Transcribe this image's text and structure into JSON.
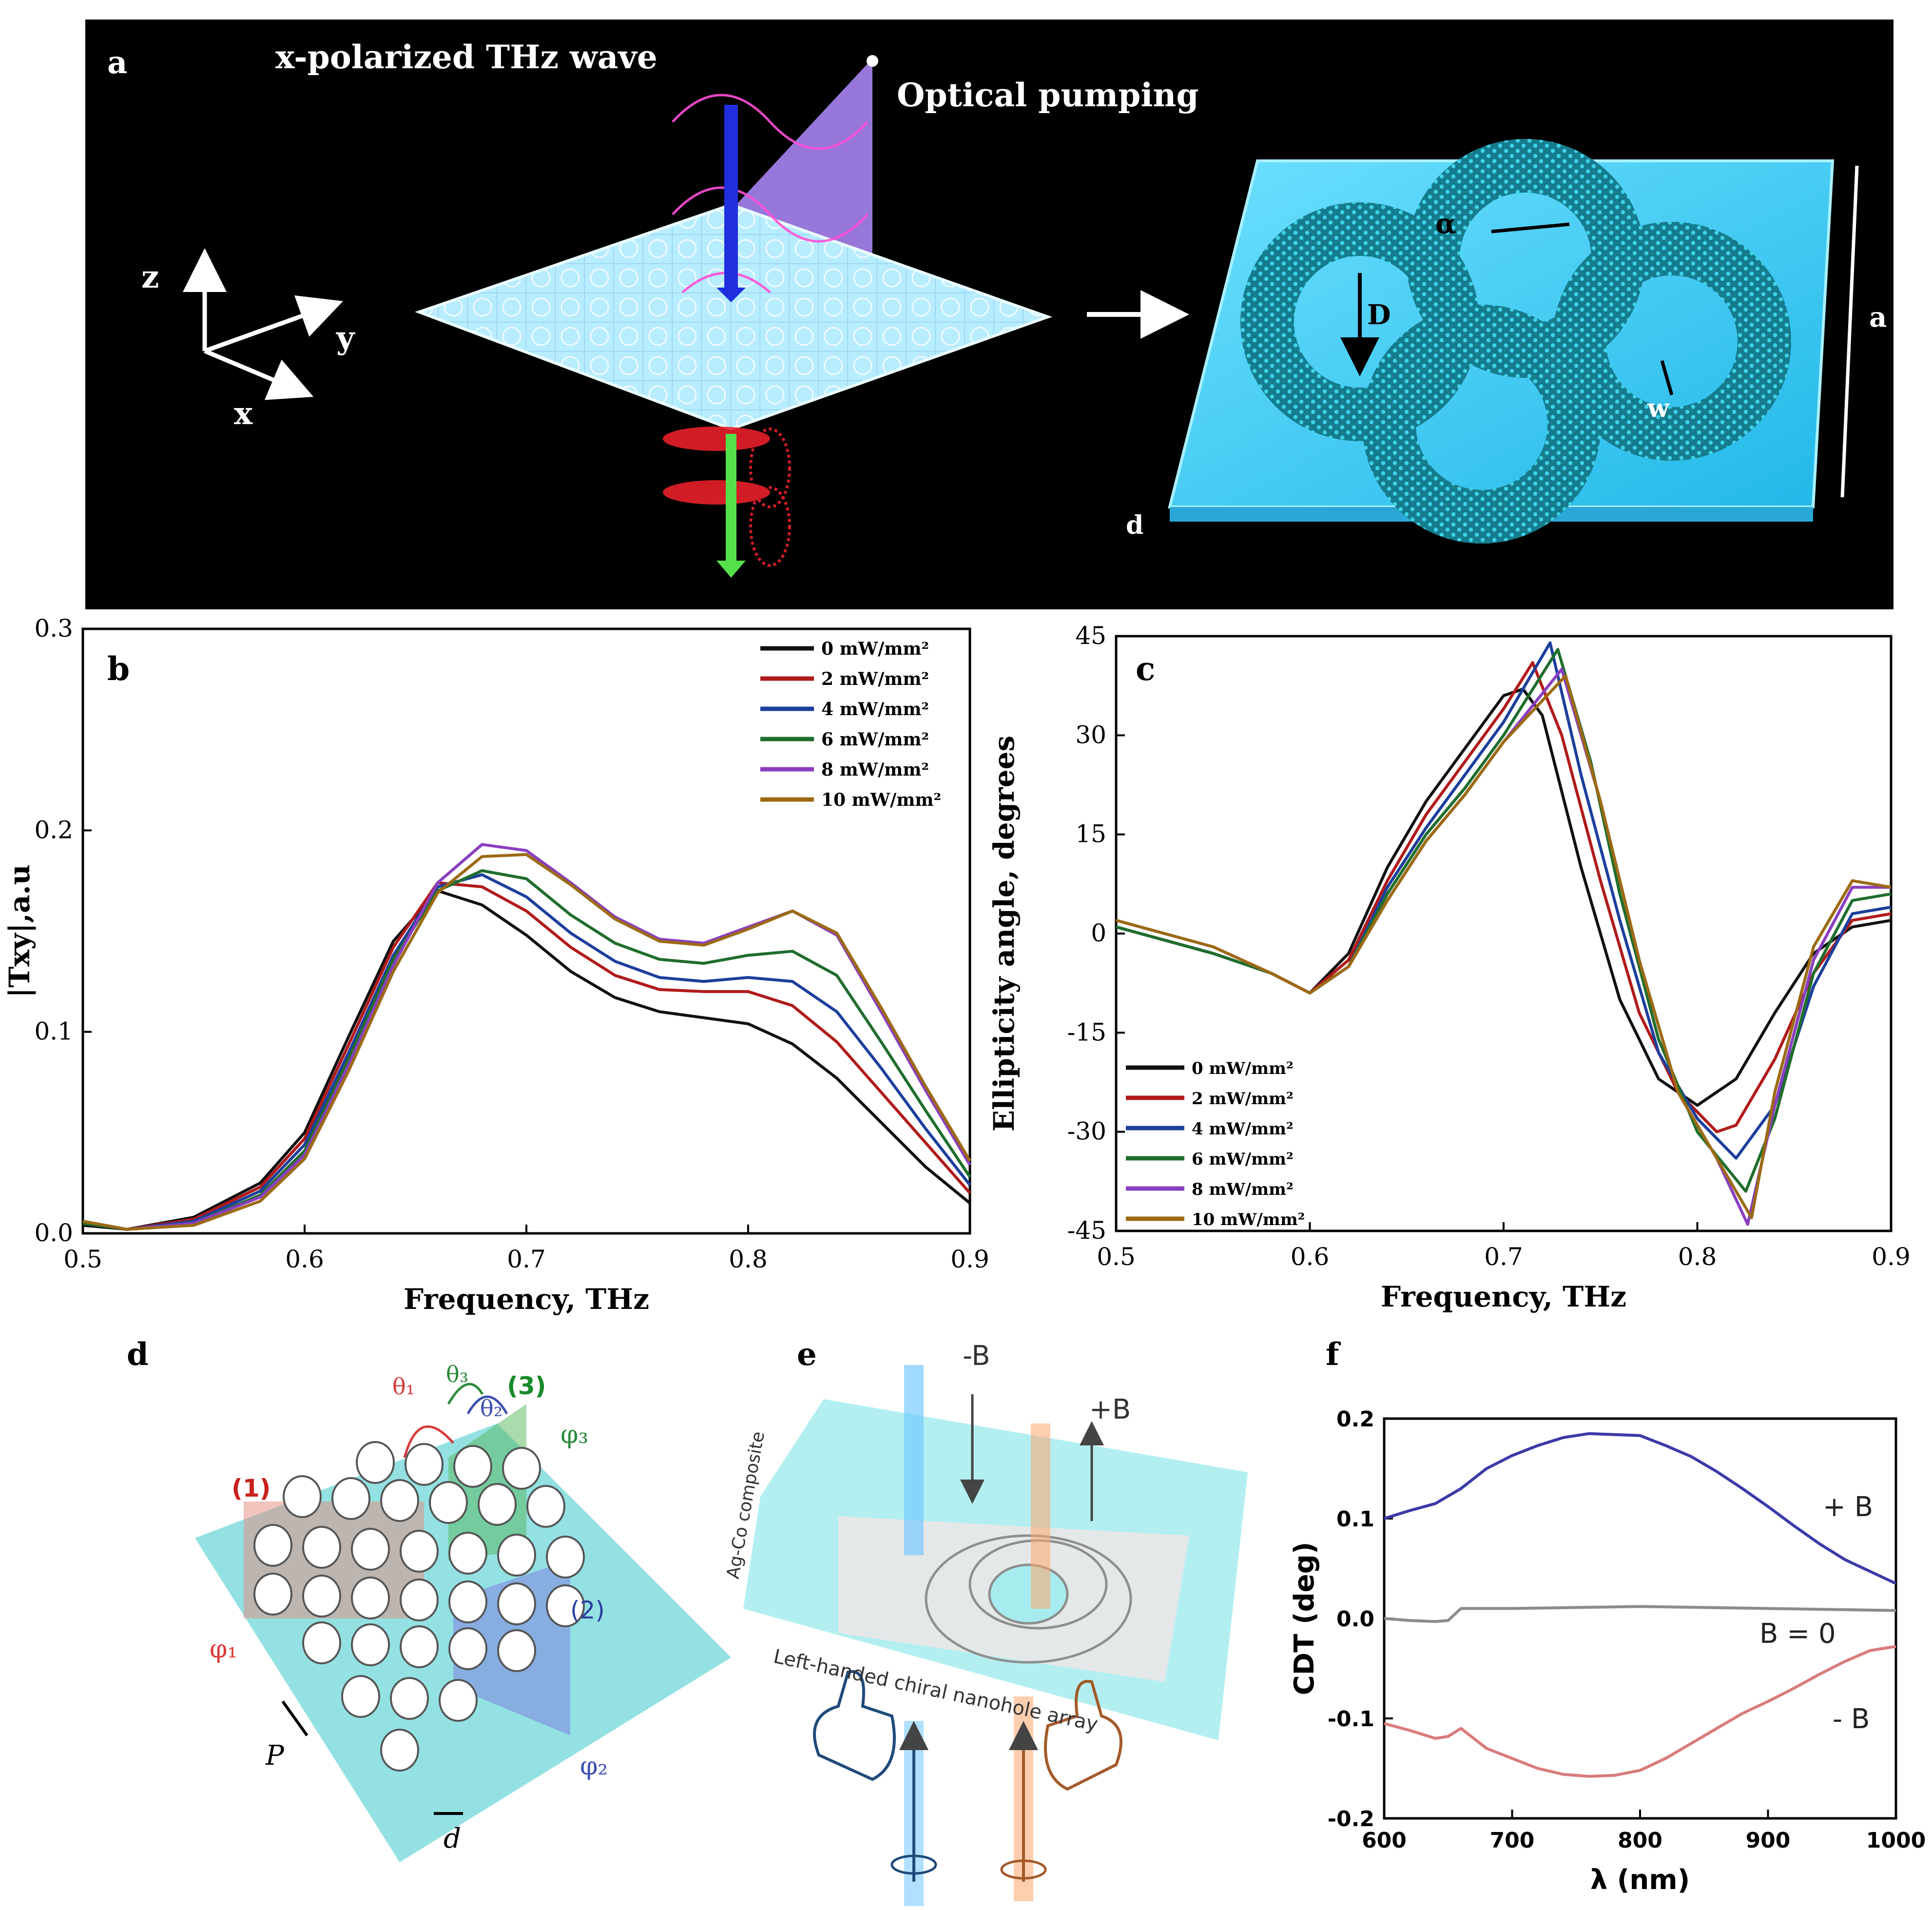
{
  "panel_a": {
    "letter": "a",
    "title_wave": "x-polarized THz wave",
    "title_pump": "Optical pumping",
    "axis_z": "z",
    "axis_y": "y",
    "axis_x": "x",
    "dim_D": "D",
    "dim_alpha": "α",
    "dim_a": "a",
    "dim_w": "w",
    "dim_d": "d"
  },
  "panel_d": {
    "letter": "d",
    "label_1": "(1)",
    "label_2": "(2)",
    "label_3": "(3)",
    "phi1": "φ₁",
    "phi2": "φ₂",
    "phi3": "φ₃",
    "theta1": "θ₁",
    "theta2": "θ₂",
    "theta3": "θ₃",
    "pitch": "P",
    "diameter": "d"
  },
  "panel_e": {
    "letter": "e",
    "minus_b": "-B",
    "plus_b": "+B",
    "composite": "Ag-Co composite",
    "array": "Left-handed chiral nanohole array"
  },
  "chart_data": [
    {
      "panel": "b",
      "type": "line",
      "xlabel": "Frequency, THz",
      "ylabel": "|Txy|,a.u",
      "xlim": [
        0.5,
        0.9
      ],
      "ylim": [
        0.0,
        0.3
      ],
      "xticks": [
        "0.5",
        "0.6",
        "0.7",
        "0.8",
        "0.9"
      ],
      "yticks": [
        "0.0",
        "0.1",
        "0.2",
        "0.3"
      ],
      "legend_position": "top-right",
      "series": [
        {
          "name": "0 mW/mm²",
          "color": "#111111",
          "x": [
            0.5,
            0.52,
            0.55,
            0.58,
            0.6,
            0.62,
            0.64,
            0.66,
            0.68,
            0.7,
            0.72,
            0.74,
            0.76,
            0.78,
            0.8,
            0.82,
            0.84,
            0.86,
            0.88,
            0.9
          ],
          "y": [
            0.004,
            0.002,
            0.008,
            0.025,
            0.05,
            0.098,
            0.145,
            0.17,
            0.163,
            0.148,
            0.13,
            0.117,
            0.11,
            0.107,
            0.104,
            0.094,
            0.077,
            0.055,
            0.033,
            0.015
          ]
        },
        {
          "name": "2 mW/mm²",
          "color": "#b11a1a",
          "x": [
            0.5,
            0.52,
            0.55,
            0.58,
            0.6,
            0.62,
            0.64,
            0.66,
            0.68,
            0.7,
            0.72,
            0.74,
            0.76,
            0.78,
            0.8,
            0.82,
            0.84,
            0.86,
            0.88,
            0.9
          ],
          "y": [
            0.005,
            0.002,
            0.007,
            0.023,
            0.047,
            0.094,
            0.142,
            0.174,
            0.172,
            0.16,
            0.142,
            0.128,
            0.121,
            0.12,
            0.12,
            0.113,
            0.095,
            0.07,
            0.045,
            0.02
          ]
        },
        {
          "name": "4 mW/mm²",
          "color": "#1c3f9c",
          "x": [
            0.5,
            0.52,
            0.55,
            0.58,
            0.6,
            0.62,
            0.64,
            0.66,
            0.68,
            0.7,
            0.72,
            0.74,
            0.76,
            0.78,
            0.8,
            0.82,
            0.84,
            0.86,
            0.88,
            0.9
          ],
          "y": [
            0.005,
            0.002,
            0.006,
            0.021,
            0.044,
            0.09,
            0.138,
            0.172,
            0.178,
            0.167,
            0.149,
            0.135,
            0.127,
            0.125,
            0.127,
            0.125,
            0.11,
            0.082,
            0.052,
            0.024
          ]
        },
        {
          "name": "6 mW/mm²",
          "color": "#1f6e2c",
          "x": [
            0.5,
            0.52,
            0.55,
            0.58,
            0.6,
            0.62,
            0.64,
            0.66,
            0.68,
            0.7,
            0.72,
            0.74,
            0.76,
            0.78,
            0.8,
            0.82,
            0.84,
            0.86,
            0.88,
            0.9
          ],
          "y": [
            0.005,
            0.002,
            0.005,
            0.019,
            0.041,
            0.087,
            0.136,
            0.17,
            0.18,
            0.176,
            0.158,
            0.144,
            0.136,
            0.134,
            0.138,
            0.14,
            0.128,
            0.095,
            0.061,
            0.028
          ]
        },
        {
          "name": "8 mW/mm²",
          "color": "#8a3fbf",
          "x": [
            0.5,
            0.52,
            0.55,
            0.58,
            0.6,
            0.62,
            0.64,
            0.66,
            0.68,
            0.7,
            0.72,
            0.74,
            0.76,
            0.78,
            0.8,
            0.82,
            0.84,
            0.86,
            0.88,
            0.9
          ],
          "y": [
            0.006,
            0.002,
            0.005,
            0.018,
            0.039,
            0.084,
            0.133,
            0.174,
            0.193,
            0.19,
            0.174,
            0.157,
            0.146,
            0.144,
            0.152,
            0.16,
            0.148,
            0.11,
            0.071,
            0.034
          ]
        },
        {
          "name": "10 mW/mm²",
          "color": "#9c6a12",
          "x": [
            0.5,
            0.52,
            0.55,
            0.58,
            0.6,
            0.62,
            0.64,
            0.66,
            0.68,
            0.7,
            0.72,
            0.74,
            0.76,
            0.78,
            0.8,
            0.82,
            0.84,
            0.86,
            0.88,
            0.9
          ],
          "y": [
            0.006,
            0.002,
            0.004,
            0.016,
            0.037,
            0.081,
            0.13,
            0.169,
            0.187,
            0.188,
            0.173,
            0.156,
            0.145,
            0.143,
            0.151,
            0.16,
            0.149,
            0.112,
            0.073,
            0.036
          ]
        }
      ]
    },
    {
      "panel": "c",
      "type": "line",
      "xlabel": "Frequency, THz",
      "ylabel": "Ellipticity angle, degrees",
      "xlim": [
        0.5,
        0.9
      ],
      "ylim": [
        -45,
        45
      ],
      "xticks": [
        "0.5",
        "0.6",
        "0.7",
        "0.8",
        "0.9"
      ],
      "yticks": [
        "-45",
        "-30",
        "-15",
        "0",
        "15",
        "30",
        "45"
      ],
      "legend_position": "bottom-left",
      "series": [
        {
          "name": "0 mW/mm²",
          "color": "#111111",
          "x": [
            0.5,
            0.55,
            0.58,
            0.6,
            0.62,
            0.64,
            0.66,
            0.68,
            0.7,
            0.71,
            0.72,
            0.74,
            0.76,
            0.78,
            0.8,
            0.82,
            0.84,
            0.86,
            0.88,
            0.9
          ],
          "y": [
            1,
            -3,
            -6,
            -9,
            -3,
            10,
            20,
            28,
            36,
            37,
            33,
            10,
            -10,
            -22,
            -26,
            -22,
            -12,
            -3,
            1,
            2
          ]
        },
        {
          "name": "2 mW/mm²",
          "color": "#b11a1a",
          "x": [
            0.5,
            0.55,
            0.58,
            0.6,
            0.62,
            0.64,
            0.66,
            0.68,
            0.7,
            0.715,
            0.73,
            0.75,
            0.77,
            0.79,
            0.81,
            0.82,
            0.84,
            0.86,
            0.88,
            0.9
          ],
          "y": [
            1,
            -3,
            -6,
            -9,
            -4,
            8,
            18,
            26,
            34,
            41,
            30,
            8,
            -12,
            -24,
            -30,
            -29,
            -19,
            -6,
            2,
            3
          ]
        },
        {
          "name": "4 mW/mm²",
          "color": "#1c3f9c",
          "x": [
            0.5,
            0.55,
            0.58,
            0.6,
            0.62,
            0.64,
            0.66,
            0.68,
            0.7,
            0.724,
            0.74,
            0.76,
            0.78,
            0.8,
            0.82,
            0.84,
            0.86,
            0.88,
            0.9
          ],
          "y": [
            1,
            -3,
            -6,
            -9,
            -5,
            7,
            16,
            24,
            32,
            44,
            24,
            2,
            -18,
            -28,
            -34,
            -26,
            -8,
            3,
            4
          ]
        },
        {
          "name": "6 mW/mm²",
          "color": "#1f6e2c",
          "x": [
            0.5,
            0.55,
            0.58,
            0.6,
            0.62,
            0.64,
            0.66,
            0.68,
            0.7,
            0.728,
            0.745,
            0.76,
            0.78,
            0.8,
            0.825,
            0.84,
            0.86,
            0.88,
            0.9
          ],
          "y": [
            1,
            -3,
            -6,
            -9,
            -5,
            6,
            15,
            22,
            30,
            43,
            26,
            6,
            -16,
            -30,
            -39,
            -28,
            -6,
            5,
            6
          ]
        },
        {
          "name": "8 mW/mm²",
          "color": "#8a3fbf",
          "x": [
            0.5,
            0.55,
            0.58,
            0.6,
            0.62,
            0.64,
            0.66,
            0.68,
            0.7,
            0.73,
            0.75,
            0.77,
            0.79,
            0.81,
            0.826,
            0.84,
            0.86,
            0.88,
            0.9
          ],
          "y": [
            2,
            -2,
            -6,
            -9,
            -5,
            5,
            14,
            21,
            29,
            40,
            20,
            -4,
            -24,
            -34,
            -44,
            -26,
            -4,
            7,
            7
          ]
        },
        {
          "name": "10 mW/mm²",
          "color": "#9c6a12",
          "x": [
            0.5,
            0.55,
            0.58,
            0.6,
            0.62,
            0.64,
            0.66,
            0.68,
            0.7,
            0.732,
            0.75,
            0.77,
            0.79,
            0.81,
            0.828,
            0.84,
            0.86,
            0.88,
            0.9
          ],
          "y": [
            2,
            -2,
            -6,
            -9,
            -5,
            5,
            14,
            21,
            29,
            39,
            20,
            -4,
            -24,
            -34,
            -43,
            -24,
            -2,
            8,
            7
          ]
        }
      ]
    },
    {
      "panel": "f",
      "type": "line",
      "xlabel": "λ (nm)",
      "ylabel": "CDT (deg)",
      "xlim": [
        600,
        1000
      ],
      "ylim": [
        -0.2,
        0.2
      ],
      "xticks": [
        "600",
        "700",
        "800",
        "900",
        "1000"
      ],
      "yticks": [
        "-0.2",
        "-0.1",
        "0.0",
        "0.1",
        "0.2"
      ],
      "series": [
        {
          "name": "+ B",
          "color": "#3b3ba8",
          "x": [
            600,
            620,
            640,
            660,
            680,
            700,
            720,
            740,
            760,
            780,
            800,
            820,
            840,
            860,
            880,
            900,
            920,
            940,
            960,
            980,
            1000
          ],
          "y": [
            0.1,
            0.108,
            0.115,
            0.13,
            0.15,
            0.163,
            0.173,
            0.181,
            0.185,
            0.184,
            0.183,
            0.173,
            0.162,
            0.147,
            0.13,
            0.112,
            0.093,
            0.075,
            0.059,
            0.047,
            0.035
          ]
        },
        {
          "name": "B = 0",
          "color": "#8c8c8c",
          "x": [
            600,
            620,
            640,
            650,
            660,
            700,
            800,
            900,
            1000
          ],
          "y": [
            0.0,
            -0.002,
            -0.003,
            -0.002,
            0.01,
            0.01,
            0.012,
            0.01,
            0.008
          ]
        },
        {
          "name": "- B",
          "color": "#d97b7b",
          "x": [
            600,
            620,
            640,
            650,
            660,
            680,
            700,
            720,
            740,
            760,
            780,
            800,
            820,
            840,
            860,
            880,
            900,
            920,
            940,
            960,
            980,
            1000
          ],
          "y": [
            -0.105,
            -0.112,
            -0.12,
            -0.118,
            -0.11,
            -0.13,
            -0.14,
            -0.15,
            -0.156,
            -0.158,
            -0.157,
            -0.152,
            -0.14,
            -0.125,
            -0.11,
            -0.095,
            -0.083,
            -0.07,
            -0.056,
            -0.043,
            -0.032,
            -0.028
          ]
        }
      ]
    }
  ],
  "panel_b_letter": "b",
  "panel_c_letter": "c",
  "panel_f_letter": "f"
}
